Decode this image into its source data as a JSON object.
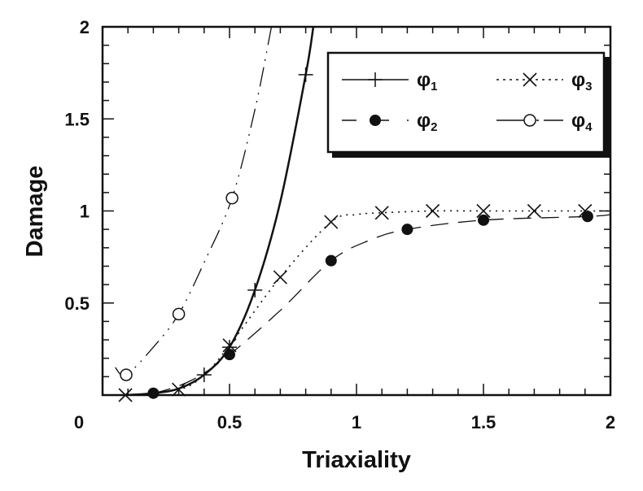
{
  "chart_data": {
    "type": "line",
    "title": "",
    "xlabel": "Triaxiality",
    "ylabel": "Damage",
    "xlim": [
      0,
      2
    ],
    "ylim": [
      0,
      2
    ],
    "x_ticks": [
      "0",
      "0.5",
      "1",
      "1.5",
      "2"
    ],
    "y_ticks": [
      "0.5",
      "1",
      "1.5",
      "2"
    ],
    "x_tick_values": [
      0,
      0.5,
      1,
      1.5,
      2
    ],
    "y_tick_values": [
      0.5,
      1,
      1.5,
      2
    ],
    "minor_tick_step": 0.1,
    "grid": false,
    "legend_placement": "top-right",
    "series": [
      {
        "name": "φ1",
        "sub": "1",
        "marker": "plus",
        "dash": "solid",
        "width": 2.5,
        "curve": [
          [
            0.09,
            0
          ],
          [
            0.2,
            0.01
          ],
          [
            0.3,
            0.035
          ],
          [
            0.4,
            0.11
          ],
          [
            0.5,
            0.26
          ],
          [
            0.6,
            0.57
          ],
          [
            0.7,
            1.05
          ],
          [
            0.8,
            1.74
          ],
          [
            0.83,
            2
          ]
        ],
        "markers": [
          [
            0.4,
            0.11
          ],
          [
            0.5,
            0.26
          ],
          [
            0.6,
            0.57
          ],
          [
            0.8,
            1.74
          ]
        ]
      },
      {
        "name": "φ2",
        "sub": "2",
        "marker": "filled-circle",
        "dash": "longdash",
        "width": 1.3,
        "curve": [
          [
            0.09,
            0
          ],
          [
            0.2,
            0.01
          ],
          [
            0.35,
            0.08
          ],
          [
            0.5,
            0.22
          ],
          [
            0.7,
            0.46
          ],
          [
            0.9,
            0.73
          ],
          [
            1.05,
            0.84
          ],
          [
            1.2,
            0.9
          ],
          [
            1.5,
            0.95
          ],
          [
            1.91,
            0.97
          ],
          [
            2,
            0.98
          ]
        ],
        "markers": [
          [
            0.2,
            0.01
          ],
          [
            0.5,
            0.22
          ],
          [
            0.9,
            0.73
          ],
          [
            1.2,
            0.9
          ],
          [
            1.5,
            0.95
          ],
          [
            1.91,
            0.97
          ]
        ]
      },
      {
        "name": "φ3",
        "sub": "3",
        "marker": "cross",
        "dash": "dotted",
        "width": 1.6,
        "curve": [
          [
            0.09,
            0
          ],
          [
            0.3,
            0.03
          ],
          [
            0.4,
            0.11
          ],
          [
            0.5,
            0.27
          ],
          [
            0.7,
            0.64
          ],
          [
            0.9,
            0.94
          ],
          [
            1.0,
            0.98
          ],
          [
            1.1,
            0.99
          ],
          [
            1.3,
            1.0
          ],
          [
            1.5,
            1.0
          ],
          [
            1.7,
            1.0
          ],
          [
            1.9,
            1.0
          ],
          [
            2,
            1.0
          ]
        ],
        "markers": [
          [
            0.09,
            0
          ],
          [
            0.3,
            0.03
          ],
          [
            0.5,
            0.27
          ],
          [
            0.7,
            0.64
          ],
          [
            0.9,
            0.94
          ],
          [
            1.1,
            0.99
          ],
          [
            1.3,
            1.0
          ],
          [
            1.5,
            1.0
          ],
          [
            1.7,
            1.0
          ],
          [
            1.9,
            1.0
          ]
        ]
      },
      {
        "name": "φ4",
        "sub": "4",
        "marker": "open-circle",
        "dash": "dashdotdot",
        "width": 1.3,
        "curve": [
          [
            0.05,
            0.15
          ],
          [
            0.093,
            0.11
          ],
          [
            0.2,
            0.26
          ],
          [
            0.3,
            0.44
          ],
          [
            0.4,
            0.72
          ],
          [
            0.51,
            1.07
          ],
          [
            0.6,
            1.55
          ],
          [
            0.665,
            2
          ]
        ],
        "markers": [
          [
            0.093,
            0.11
          ],
          [
            0.3,
            0.44
          ],
          [
            0.51,
            1.07
          ]
        ]
      }
    ]
  }
}
